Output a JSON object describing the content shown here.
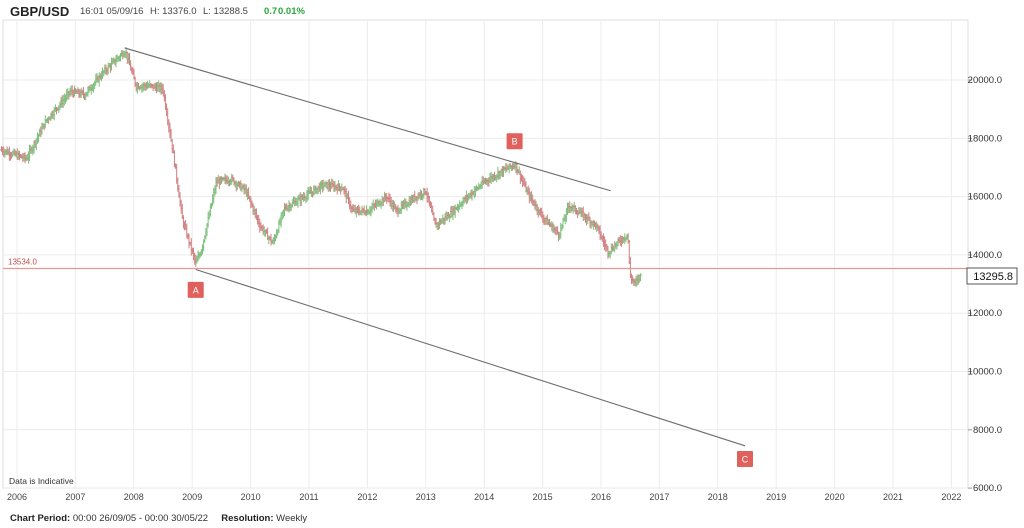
{
  "header": {
    "symbol": "GBP/USD",
    "datetime": "16:01 05/09/16",
    "high": "H: 13376.0",
    "low": "L: 13288.5",
    "change": "0.7",
    "change_pct": "0.01%"
  },
  "footer": {
    "period_label": "Chart Period:",
    "period_value": "00:00 26/09/05 - 00:00 30/05/22",
    "resolution_label": "Resolution:",
    "resolution_value": "Weekly"
  },
  "colors": {
    "up_bar": "#7bbf7b",
    "down_bar": "#d08080",
    "trendline": "#6e6e6e",
    "label_box": "#e0605c",
    "hline": "#e39a93",
    "grid": "#ececec"
  },
  "chart_data": {
    "type": "ohlc",
    "x_axis": {
      "type": "date",
      "ticks": [
        "2006",
        "2007",
        "2008",
        "2009",
        "2010",
        "2011",
        "2012",
        "2013",
        "2014",
        "2015",
        "2016",
        "2017",
        "2018",
        "2019",
        "2020",
        "2021",
        "2022"
      ],
      "range": [
        "2005-09-26",
        "2022-05-30"
      ]
    },
    "y_axis": {
      "ticks": [
        "6000.0",
        "8000.0",
        "10000.0",
        "12000.0",
        "14000.0",
        "16000.0",
        "18000.0",
        "20000.0"
      ],
      "range": [
        6000,
        22500
      ],
      "position": "right"
    },
    "last_price_label": "13295.8",
    "level_label": "13534.0",
    "level_value": 13534,
    "note": "Data is Indicative",
    "price_anchors": [
      [
        "2005-09-26",
        17600
      ],
      [
        "2006-03-01",
        17300
      ],
      [
        "2006-07-01",
        18600
      ],
      [
        "2006-12-01",
        19600
      ],
      [
        "2007-03-01",
        19500
      ],
      [
        "2007-07-01",
        20300
      ],
      [
        "2007-11-09",
        21000
      ],
      [
        "2008-01-15",
        19800
      ],
      [
        "2008-04-01",
        19800
      ],
      [
        "2008-07-01",
        19700
      ],
      [
        "2008-09-01",
        17600
      ],
      [
        "2008-11-01",
        15200
      ],
      [
        "2009-01-23",
        13700
      ],
      [
        "2009-03-01",
        14200
      ],
      [
        "2009-06-01",
        16500
      ],
      [
        "2009-09-01",
        16600
      ],
      [
        "2009-12-01",
        16200
      ],
      [
        "2010-03-01",
        15000
      ],
      [
        "2010-05-20",
        14400
      ],
      [
        "2010-08-01",
        15600
      ],
      [
        "2010-11-01",
        15900
      ],
      [
        "2011-04-01",
        16400
      ],
      [
        "2011-08-01",
        16300
      ],
      [
        "2011-10-01",
        15500
      ],
      [
        "2012-01-01",
        15500
      ],
      [
        "2012-05-01",
        16000
      ],
      [
        "2012-07-01",
        15500
      ],
      [
        "2012-11-01",
        16000
      ],
      [
        "2013-01-01",
        16200
      ],
      [
        "2013-03-01",
        15000
      ],
      [
        "2013-06-01",
        15400
      ],
      [
        "2013-09-01",
        15900
      ],
      [
        "2014-01-01",
        16500
      ],
      [
        "2014-05-01",
        16900
      ],
      [
        "2014-07-15",
        17100
      ],
      [
        "2014-10-01",
        16100
      ],
      [
        "2015-01-01",
        15300
      ],
      [
        "2015-04-13",
        14700
      ],
      [
        "2015-06-15",
        15700
      ],
      [
        "2015-09-01",
        15400
      ],
      [
        "2015-12-01",
        15000
      ],
      [
        "2016-02-15",
        14100
      ],
      [
        "2016-05-01",
        14500
      ],
      [
        "2016-06-17",
        14700
      ],
      [
        "2016-06-30",
        13300
      ],
      [
        "2016-08-01",
        13000
      ],
      [
        "2016-09-05",
        13300
      ]
    ],
    "trendlines": [
      {
        "from": [
          "2007-11-05",
          21100
        ],
        "to": [
          "2016-03-01",
          16200
        ]
      },
      {
        "from": [
          "2009-01-23",
          13500
        ],
        "to": [
          "2018-06-20",
          7450
        ]
      }
    ],
    "wave_labels": [
      {
        "text": "A",
        "date": "2009-01-23",
        "value": 12800
      },
      {
        "text": "B",
        "date": "2014-07-10",
        "value": 17900
      },
      {
        "text": "C",
        "date": "2018-06-20",
        "value": 7000
      }
    ]
  }
}
